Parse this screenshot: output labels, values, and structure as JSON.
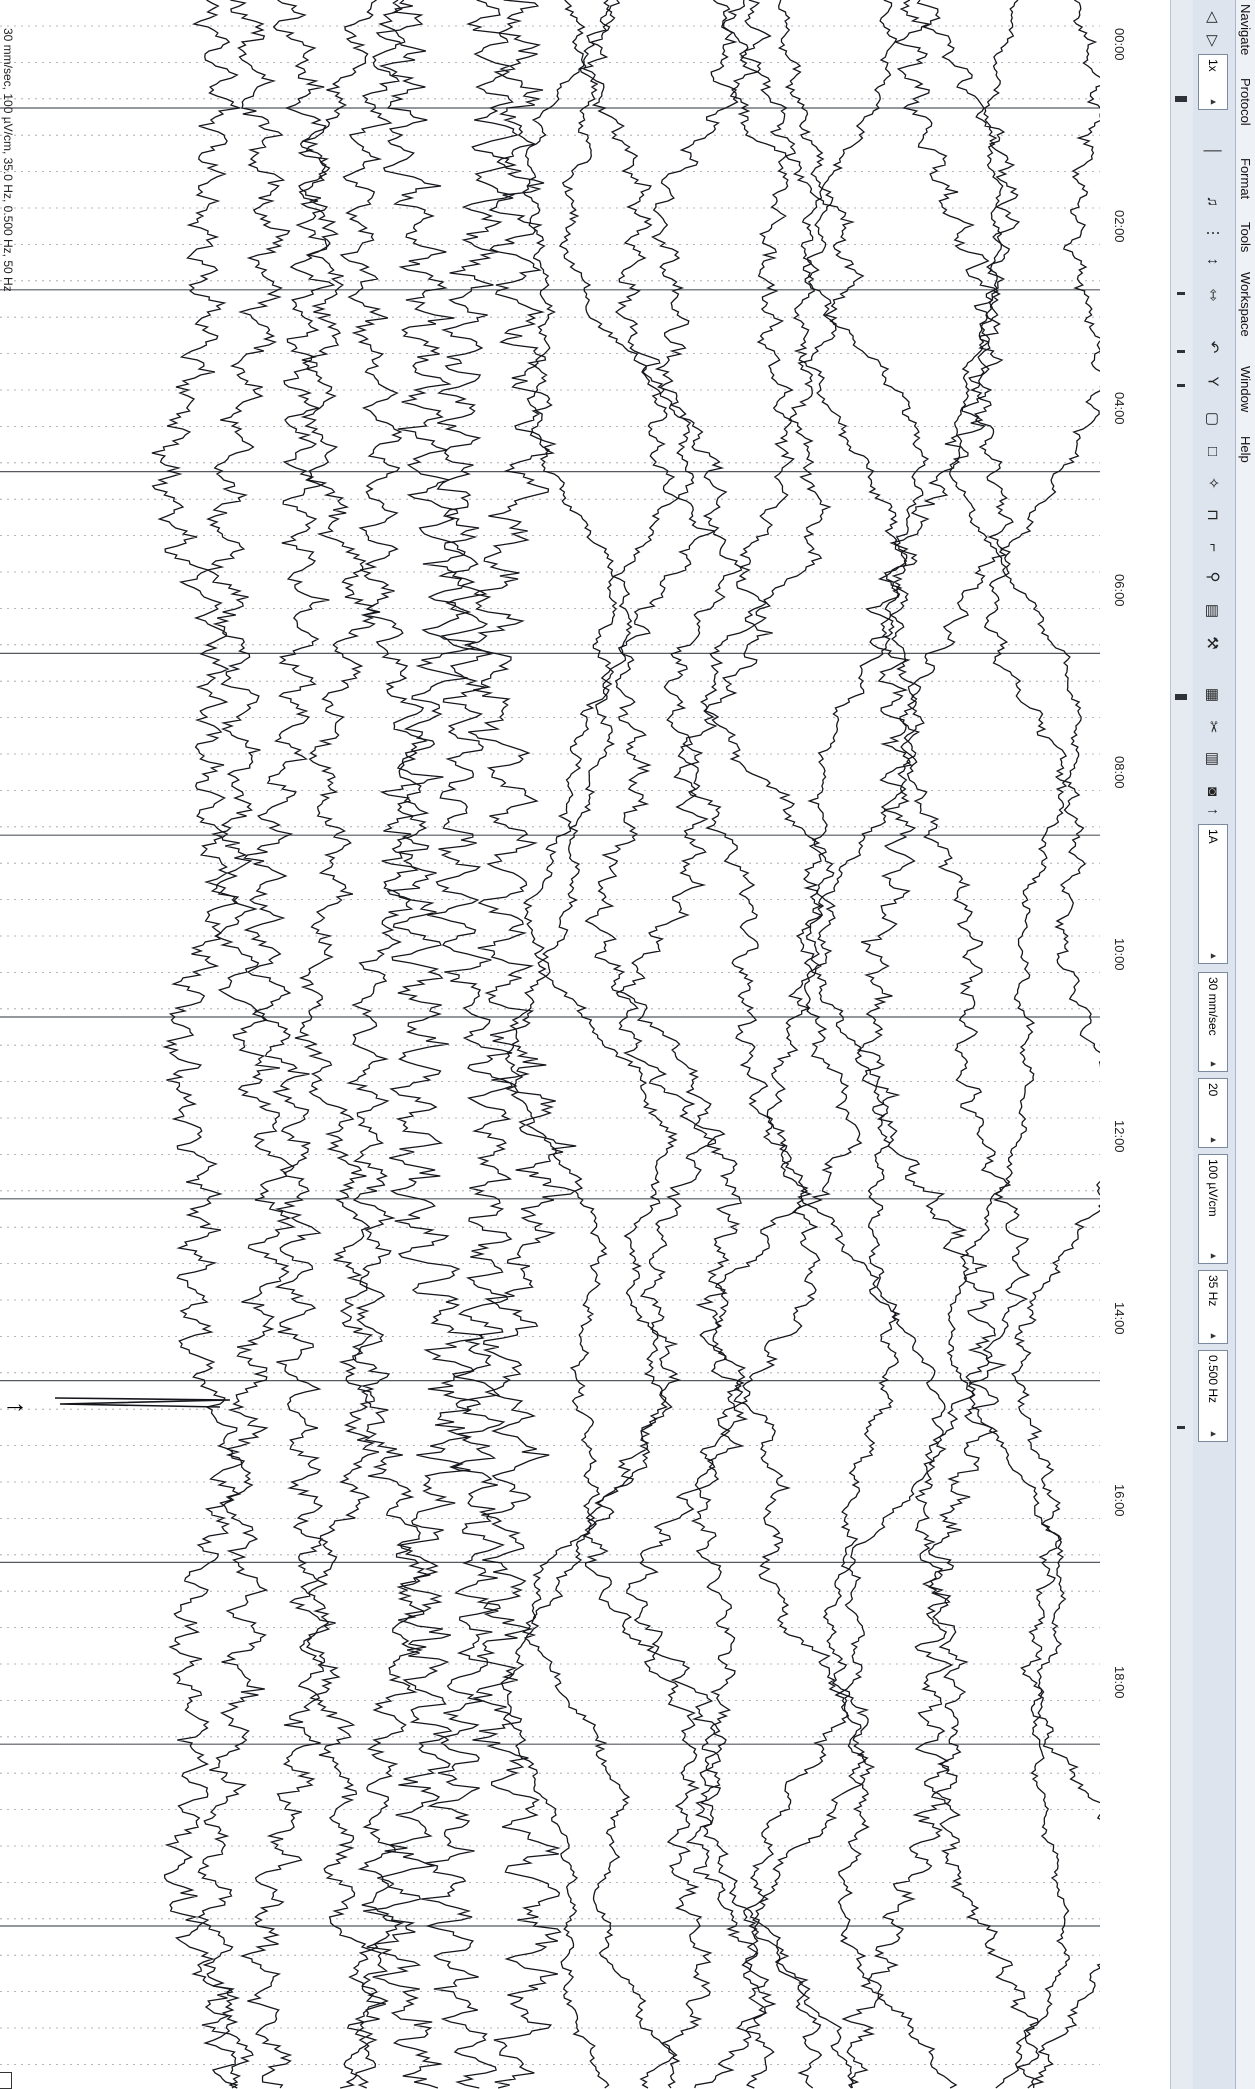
{
  "menu": {
    "items": [
      "Navigate",
      "Protocol",
      "Format",
      "Tools",
      "Workspace",
      "Window",
      "Help"
    ]
  },
  "toolbar": {
    "page_selector": "1x",
    "speed": "30 mm/sec",
    "channels": "20",
    "sensitivity": "100 µV/cm",
    "high_filter": "35 Hz",
    "low_filter": "0.500 Hz",
    "montage_label": "1A"
  },
  "time_axis": {
    "labels": [
      "00:00",
      "02:00",
      "04:00",
      "06:00",
      "08:00",
      "10:00",
      "12:00",
      "14:00",
      "16:00",
      "18:00"
    ]
  },
  "status": {
    "text": "30 mm/sec, 100 µV/cm, 35.0 Hz, 0.500 Hz, 50 Hz"
  },
  "icons": {
    "prev": "triangle-left-icon",
    "next": "triangle-right-icon"
  },
  "colors": {
    "trace": "#14161c",
    "gridline": "#55595f",
    "dotted_grid": "#9aa0a8"
  }
}
